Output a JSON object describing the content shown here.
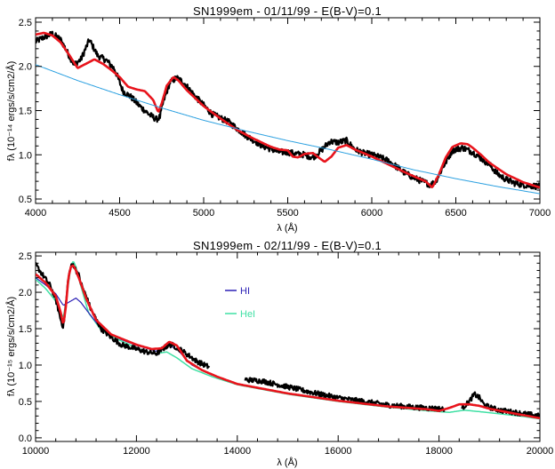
{
  "chart_data": [
    {
      "type": "line",
      "title": "SN1999em - 01/11/99 - E(B-V)=0.1",
      "xlabel": "λ (Å)",
      "ylabel": "fλ (10⁻¹⁴ ergs/s/cm2/Å)",
      "xlim": [
        4000,
        7000
      ],
      "ylim": [
        0.45,
        2.55
      ],
      "xticks": [
        4000,
        4500,
        5000,
        5500,
        6000,
        6500,
        7000
      ],
      "yticks": [
        0.5,
        1.0,
        1.5,
        2.0,
        2.5
      ],
      "colors": {
        "observed": "#000000",
        "model": "#e8141c",
        "continuum": "#2ba0e0"
      },
      "series": [
        {
          "key": "observed",
          "noise": 0.035,
          "x": [
            4000,
            4050,
            4100,
            4150,
            4200,
            4230,
            4270,
            4320,
            4370,
            4420,
            4470,
            4520,
            4570,
            4620,
            4680,
            4720,
            4740,
            4760,
            4800,
            4840,
            4880,
            4950,
            5050,
            5150,
            5250,
            5350,
            5450,
            5500,
            5550,
            5600,
            5650,
            5700,
            5750,
            5800,
            5850,
            5900,
            5950,
            6000,
            6050,
            6100,
            6150,
            6200,
            6250,
            6300,
            6350,
            6380,
            6420,
            6480,
            6540,
            6600,
            6650,
            6700,
            6750,
            6800,
            6850,
            6900,
            6950,
            7000
          ],
          "y": [
            2.28,
            2.33,
            2.37,
            2.3,
            2.12,
            2.02,
            2.08,
            2.3,
            2.12,
            2.07,
            1.97,
            1.72,
            1.65,
            1.55,
            1.45,
            1.4,
            1.43,
            1.6,
            1.82,
            1.87,
            1.82,
            1.66,
            1.46,
            1.37,
            1.22,
            1.1,
            1.03,
            1.03,
            1.01,
            1.0,
            0.97,
            1.05,
            1.15,
            1.14,
            1.16,
            1.06,
            1.02,
            1.0,
            0.97,
            0.93,
            0.86,
            0.79,
            0.74,
            0.7,
            0.66,
            0.7,
            0.85,
            1.05,
            1.08,
            1.03,
            0.96,
            0.89,
            0.78,
            0.72,
            0.68,
            0.66,
            0.65,
            0.64
          ]
        },
        {
          "key": "model",
          "noise": 0,
          "x": [
            4000,
            4050,
            4100,
            4150,
            4200,
            4250,
            4300,
            4350,
            4400,
            4450,
            4500,
            4550,
            4600,
            4650,
            4700,
            4730,
            4750,
            4780,
            4820,
            4850,
            4900,
            5000,
            5100,
            5200,
            5300,
            5400,
            5450,
            5500,
            5530,
            5560,
            5600,
            5650,
            5690,
            5720,
            5760,
            5800,
            5850,
            5900,
            6000,
            6100,
            6200,
            6270,
            6320,
            6360,
            6400,
            6440,
            6480,
            6530,
            6570,
            6600,
            6650,
            6700,
            6800,
            6900,
            7000
          ],
          "y": [
            2.36,
            2.38,
            2.35,
            2.27,
            2.13,
            1.98,
            2.03,
            2.08,
            2.03,
            1.96,
            1.88,
            1.77,
            1.74,
            1.72,
            1.62,
            1.48,
            1.58,
            1.78,
            1.88,
            1.84,
            1.73,
            1.55,
            1.41,
            1.28,
            1.18,
            1.09,
            1.06,
            1.05,
            0.98,
            0.97,
            1.01,
            1.02,
            0.96,
            0.92,
            0.98,
            1.08,
            1.11,
            1.06,
            0.98,
            0.89,
            0.8,
            0.74,
            0.7,
            0.63,
            0.78,
            0.97,
            1.09,
            1.13,
            1.12,
            1.08,
            1.0,
            0.91,
            0.78,
            0.69,
            0.63
          ]
        },
        {
          "key": "continuum",
          "noise": 0,
          "x": [
            4000,
            4250,
            4500,
            4750,
            5000,
            5250,
            5500,
            5750,
            6000,
            6250,
            6500,
            6750,
            7000
          ],
          "y": [
            2.02,
            1.84,
            1.68,
            1.53,
            1.39,
            1.27,
            1.16,
            1.06,
            0.95,
            0.83,
            0.73,
            0.64,
            0.56
          ]
        }
      ]
    },
    {
      "type": "line",
      "title": "SN1999em - 02/11/99 - E(B-V)=0.1",
      "xlabel": "λ (Å)",
      "ylabel": "fλ (10⁻¹⁵ ergs/s/cm2/Å)",
      "xlim": [
        10000,
        20000
      ],
      "ylim": [
        -0.05,
        2.55
      ],
      "xticks": [
        10000,
        12000,
        14000,
        16000,
        18000,
        20000
      ],
      "yticks": [
        0.0,
        0.5,
        1.0,
        1.5,
        2.0,
        2.5
      ],
      "legend": [
        {
          "label": "HI",
          "color": "#2a1fb5"
        },
        {
          "label": "HeI",
          "color": "#3fe0a4"
        }
      ],
      "colors": {
        "observed": "#000000",
        "model": "#e8141c",
        "hi": "#2a1fb5",
        "hei": "#3fe0a4"
      },
      "gaps": [
        [
          13450,
          14150
        ],
        [
          18100,
          18450
        ]
      ],
      "series": [
        {
          "key": "hei",
          "noise": 0,
          "x": [
            10000,
            10200,
            10400,
            10550,
            10650,
            10700,
            10750,
            10800,
            10900,
            11050,
            11300,
            11700,
            12200,
            12400,
            12600,
            12800,
            13100,
            13500,
            14000,
            15000,
            16000,
            17000,
            17800,
            18200,
            18500,
            18800,
            19200,
            19600,
            20000
          ],
          "y": [
            2.18,
            2.05,
            1.88,
            1.65,
            2.1,
            2.37,
            2.43,
            2.35,
            2.08,
            1.72,
            1.48,
            1.33,
            1.18,
            1.16,
            1.18,
            1.1,
            0.95,
            0.84,
            0.73,
            0.6,
            0.5,
            0.42,
            0.37,
            0.35,
            0.38,
            0.36,
            0.33,
            0.3,
            0.26
          ]
        },
        {
          "key": "hi",
          "noise": 0,
          "x": [
            10000,
            10200,
            10400,
            10550,
            10700,
            10800,
            10900,
            11050,
            11300,
            11700,
            12000,
            12400,
            12600,
            12800,
            13100,
            13500
          ],
          "y": [
            2.2,
            2.1,
            1.98,
            1.82,
            1.88,
            1.92,
            1.86,
            1.72,
            1.5,
            1.35,
            1.27,
            1.19,
            1.28,
            1.22,
            1.0,
            0.86
          ]
        },
        {
          "key": "observed",
          "noise": 0.035,
          "x": [
            10000,
            10100,
            10200,
            10300,
            10400,
            10500,
            10550,
            10600,
            10650,
            10700,
            10750,
            10800,
            10850,
            10900,
            11000,
            11100,
            11300,
            11500,
            11700,
            12000,
            12200,
            12400,
            12600,
            12700,
            12800,
            12900,
            13000,
            13200,
            13450,
            14150,
            14500,
            15000,
            15500,
            16000,
            16500,
            17000,
            17500,
            18000,
            18100,
            18450,
            18600,
            18700,
            18800,
            18900,
            19000,
            19200,
            19500,
            19800,
            20000
          ],
          "y": [
            2.38,
            2.28,
            2.18,
            2.08,
            1.9,
            1.62,
            1.52,
            1.82,
            2.2,
            2.35,
            2.38,
            2.3,
            2.25,
            2.12,
            1.95,
            1.76,
            1.5,
            1.38,
            1.28,
            1.22,
            1.18,
            1.16,
            1.26,
            1.28,
            1.24,
            1.2,
            1.15,
            1.05,
            0.97,
            0.8,
            0.78,
            0.7,
            0.62,
            0.55,
            0.5,
            0.45,
            0.42,
            0.4,
            0.39,
            0.4,
            0.5,
            0.6,
            0.55,
            0.45,
            0.42,
            0.38,
            0.35,
            0.32,
            0.3
          ]
        },
        {
          "key": "model",
          "noise": 0,
          "x": [
            10000,
            10200,
            10400,
            10500,
            10550,
            10600,
            10650,
            10700,
            10750,
            10800,
            10900,
            11000,
            11200,
            11500,
            12000,
            12300,
            12500,
            12650,
            12800,
            13000,
            13300,
            13600,
            14000,
            15000,
            16000,
            17000,
            17800,
            18000,
            18200,
            18400,
            18600,
            18800,
            19000,
            19300,
            19600,
            20000
          ],
          "y": [
            2.25,
            2.13,
            1.95,
            1.72,
            1.55,
            1.8,
            2.2,
            2.35,
            2.37,
            2.3,
            2.12,
            1.92,
            1.62,
            1.42,
            1.28,
            1.22,
            1.23,
            1.32,
            1.27,
            1.06,
            0.93,
            0.84,
            0.74,
            0.61,
            0.51,
            0.43,
            0.39,
            0.37,
            0.41,
            0.46,
            0.46,
            0.44,
            0.4,
            0.36,
            0.32,
            0.27
          ]
        }
      ]
    }
  ]
}
